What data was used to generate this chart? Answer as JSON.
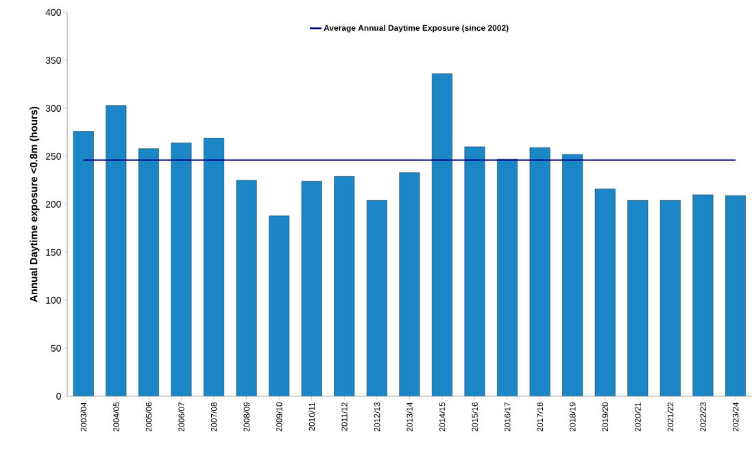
{
  "chart_data": {
    "type": "bar",
    "ylabel": "Annual Daytime exposure <0.8m (hours)",
    "categories": [
      "2003/04",
      "2004/05",
      "2005/06",
      "2006/07",
      "2007/08",
      "2008/09",
      "2009/10",
      "2010/11",
      "2011/12",
      "2012/13",
      "2013/14",
      "2014/15",
      "2015/16",
      "2016/17",
      "2017/18",
      "2018/19",
      "2019/20",
      "2020/21",
      "2021/22",
      "2022/23",
      "2023/24"
    ],
    "values": [
      276,
      303,
      258,
      264,
      269,
      225,
      188,
      224,
      229,
      204,
      233,
      336,
      260,
      247,
      259,
      252,
      216,
      204,
      204,
      210,
      209
    ],
    "color": "#1b87c6",
    "ylim": [
      0,
      400
    ],
    "yticks": [
      0,
      50,
      100,
      150,
      200,
      250,
      300,
      350,
      400
    ],
    "ref_lines": [
      {
        "axis": "y",
        "value": 246,
        "label": "Average Annual Daytime Exposure (since 2002)",
        "color": "#000080"
      }
    ],
    "legend": "top",
    "grid": false
  }
}
